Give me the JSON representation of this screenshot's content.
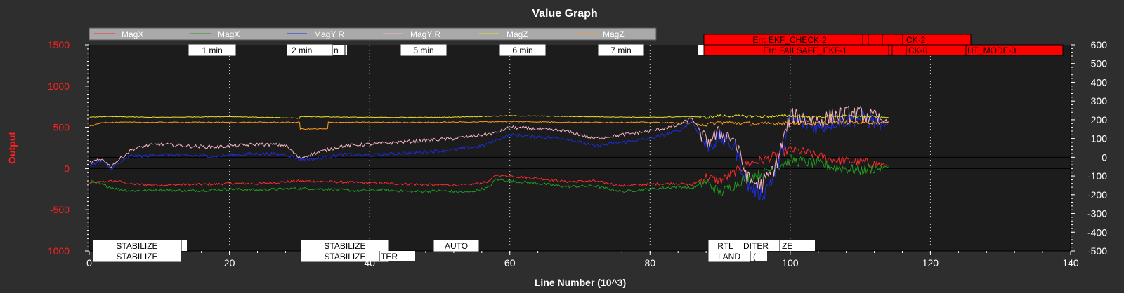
{
  "window": {
    "title": "Value Graph"
  },
  "chart_data": {
    "type": "line",
    "title": "Value Graph",
    "xlabel": "Line Number (10^3)",
    "ylabel": "Output",
    "xlim": [
      0,
      140
    ],
    "ylim_left": [
      -1000,
      1500
    ],
    "ylim_right": [
      -500,
      600
    ],
    "x_ticks": [
      0,
      20,
      40,
      60,
      80,
      100,
      120,
      140
    ],
    "y_ticks_left": [
      -1000,
      -500,
      0,
      500,
      1000,
      1500
    ],
    "y_ticks_right": [
      -500,
      -400,
      -300,
      -200,
      -100,
      0,
      100,
      200,
      300,
      400,
      500,
      600
    ],
    "grid": "vertical dotted",
    "legend_position": "top",
    "colors": {
      "background": "#2e2e2e",
      "plot_bg": "#1c1c1c",
      "left_axis": "#ff2020",
      "legend_bg": "#a9a9a9",
      "error_tag": "#ff0000"
    },
    "series": [
      {
        "name": "MagX",
        "axis": "left",
        "color": "#ff2a2a",
        "x": [
          0,
          2,
          4,
          6,
          10,
          14,
          18,
          20,
          24,
          30,
          34,
          38,
          42,
          46,
          50,
          54,
          57,
          58,
          60,
          64,
          68,
          72,
          76,
          80,
          84,
          86,
          88,
          90,
          92,
          94,
          96,
          98,
          100,
          102,
          104,
          106,
          108,
          110,
          112,
          114
        ],
        "y": [
          -180,
          -160,
          -150,
          -190,
          -200,
          -195,
          -190,
          -180,
          -185,
          -150,
          -160,
          -170,
          -180,
          -190,
          -200,
          -200,
          -160,
          -80,
          -90,
          -120,
          -160,
          -150,
          -210,
          -190,
          -180,
          -200,
          -100,
          -150,
          -50,
          60,
          100,
          160,
          230,
          200,
          150,
          110,
          90,
          80,
          60,
          40
        ]
      },
      {
        "name": "MagX",
        "axis": "left",
        "color": "#1f9d1f",
        "x": [
          0,
          2,
          4,
          6,
          10,
          14,
          18,
          20,
          24,
          30,
          34,
          38,
          42,
          46,
          50,
          54,
          57,
          58,
          60,
          64,
          68,
          72,
          76,
          80,
          84,
          86,
          88,
          90,
          92,
          94,
          96,
          98,
          100,
          102,
          104,
          106,
          108,
          110,
          112,
          114
        ],
        "y": [
          -150,
          -200,
          -250,
          -270,
          -260,
          -270,
          -260,
          -250,
          -260,
          -240,
          -250,
          -270,
          -260,
          -280,
          -270,
          -290,
          -230,
          -130,
          -150,
          -180,
          -220,
          -210,
          -280,
          -250,
          -220,
          -240,
          -160,
          -300,
          -200,
          -100,
          -60,
          20,
          100,
          80,
          60,
          20,
          0,
          -20,
          0,
          20
        ]
      },
      {
        "name": "MagY R",
        "axis": "right",
        "color": "#1a2ee0",
        "x": [
          0,
          2,
          3,
          4,
          6,
          8,
          10,
          14,
          18,
          20,
          24,
          28,
          30,
          32,
          36,
          40,
          44,
          48,
          52,
          56,
          58,
          60,
          64,
          68,
          72,
          76,
          80,
          84,
          86,
          88,
          90,
          92,
          94,
          96,
          98,
          100,
          102,
          104,
          106,
          108,
          110,
          112,
          114
        ],
        "y": [
          -40,
          -20,
          -60,
          -40,
          10,
          5,
          15,
          10,
          5,
          10,
          20,
          15,
          -10,
          -10,
          15,
          10,
          20,
          30,
          40,
          60,
          90,
          120,
          110,
          100,
          60,
          80,
          100,
          140,
          190,
          60,
          100,
          60,
          -150,
          -200,
          -80,
          200,
          180,
          160,
          190,
          200,
          210,
          190,
          170
        ]
      },
      {
        "name": "MagY R",
        "axis": "right",
        "color": "#f4b6c4",
        "x": [
          0,
          2,
          3,
          4,
          6,
          8,
          10,
          14,
          18,
          20,
          24,
          28,
          30,
          32,
          36,
          40,
          44,
          48,
          52,
          56,
          58,
          60,
          64,
          68,
          72,
          76,
          80,
          84,
          86,
          88,
          90,
          92,
          94,
          96,
          98,
          100,
          102,
          104,
          106,
          108,
          110,
          112,
          114
        ],
        "y": [
          -30,
          -10,
          -50,
          -20,
          40,
          60,
          70,
          60,
          55,
          60,
          70,
          65,
          -5,
          20,
          60,
          70,
          80,
          90,
          100,
          120,
          130,
          160,
          150,
          140,
          100,
          120,
          140,
          170,
          210,
          80,
          130,
          100,
          -120,
          -150,
          -40,
          220,
          210,
          190,
          220,
          230,
          230,
          210,
          190
        ]
      },
      {
        "name": "MagZ",
        "axis": "left",
        "color": "#e8e22a",
        "x": [
          0,
          2,
          10,
          20,
          30,
          30.1,
          40,
          50,
          60,
          70,
          80,
          86,
          88,
          90,
          96,
          100,
          104,
          106,
          110,
          114
        ],
        "y": [
          620,
          630,
          620,
          630,
          610,
          630,
          620,
          620,
          640,
          630,
          620,
          630,
          620,
          640,
          630,
          640,
          620,
          640,
          630,
          620
        ]
      },
      {
        "name": "MagZ",
        "axis": "left",
        "color": "#ff9a1a",
        "x": [
          0,
          2,
          10,
          20,
          30,
          30.1,
          34,
          34.1,
          40,
          50,
          60,
          70,
          80,
          86,
          88,
          90,
          96,
          100,
          104,
          106,
          110,
          114
        ],
        "y": [
          510,
          560,
          560,
          560,
          560,
          480,
          480,
          560,
          560,
          560,
          570,
          560,
          560,
          550,
          530,
          560,
          540,
          560,
          540,
          560,
          560,
          560
        ]
      }
    ],
    "time_markers": [
      "1 min",
      "2 min",
      "5 min",
      "6 min",
      "7 min"
    ],
    "error_tags": [
      "Err: EKF_CHECK-2",
      "CK-2",
      "Err: FAILSAFE_EKF-1",
      "CK-0",
      "HT_MODE-3"
    ],
    "mode_tags_top": [
      "STABILIZE",
      "STABILIZE",
      "AUTO",
      "RTL",
      "DITER",
      "ZE"
    ],
    "mode_tags_bottom": [
      "STABILIZE",
      "STABILIZE",
      "TER",
      "LAND",
      "("
    ]
  }
}
